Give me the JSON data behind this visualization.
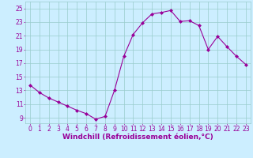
{
  "x": [
    0,
    1,
    2,
    3,
    4,
    5,
    6,
    7,
    8,
    9,
    10,
    11,
    12,
    13,
    14,
    15,
    16,
    17,
    18,
    19,
    20,
    21,
    22,
    23
  ],
  "y": [
    13.8,
    12.7,
    11.9,
    11.3,
    10.7,
    10.1,
    9.6,
    8.8,
    9.2,
    13.0,
    18.0,
    21.2,
    22.9,
    24.2,
    24.4,
    24.7,
    23.1,
    23.2,
    22.5,
    19.0,
    20.9,
    19.4,
    18.0,
    16.8
  ],
  "line_color": "#990099",
  "marker": "D",
  "marker_size": 2.0,
  "bg_color": "#cceeff",
  "grid_color": "#99cccc",
  "xlabel": "Windchill (Refroidissement éolien,°C)",
  "xlabel_color": "#990099",
  "xlabel_fontsize": 6.5,
  "ylabel_ticks": [
    9,
    11,
    13,
    15,
    17,
    19,
    21,
    23,
    25
  ],
  "xticks": [
    0,
    1,
    2,
    3,
    4,
    5,
    6,
    7,
    8,
    9,
    10,
    11,
    12,
    13,
    14,
    15,
    16,
    17,
    18,
    19,
    20,
    21,
    22,
    23
  ],
  "ylim": [
    8.2,
    26.0
  ],
  "xlim": [
    -0.5,
    23.5
  ],
  "tick_color": "#990099",
  "tick_fontsize": 5.5,
  "linewidth": 0.8
}
